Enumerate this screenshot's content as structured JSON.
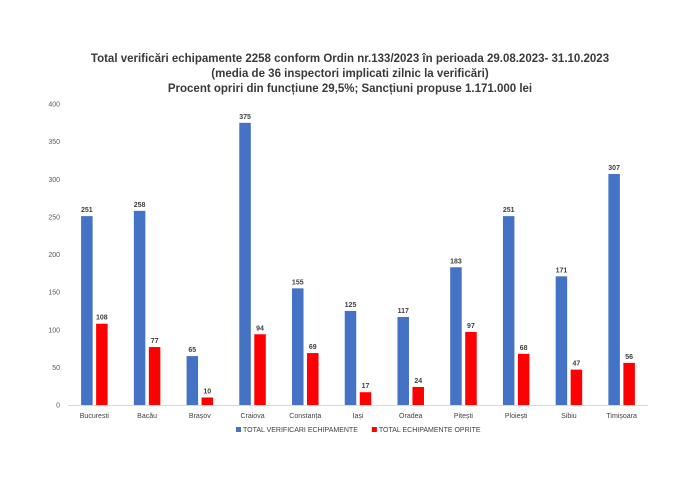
{
  "chart_data": {
    "type": "bar",
    "title": "Total verificări echipamente 2258 conform Ordin nr.133/2023 în perioada 29.08.2023- 31.10.2023",
    "subtitle": "(media de 36 inspectori implicati zilnic la verificări)",
    "subtitle2": "Procent opriri din funcțiune 29,5%; Sancțiuni propuse 1.171.000 lei",
    "categories": [
      "Bucuresti",
      "Bacău",
      "Brașov",
      "Craiova",
      "Constanța",
      "Iași",
      "Oradea",
      "Pitești",
      "Ploiești",
      "Sibiu",
      "Timișoara"
    ],
    "series": [
      {
        "name": "TOTAL VERIFICARI ECHIPAMENTE",
        "color": "#4472C4",
        "values": [
          251,
          258,
          65,
          375,
          155,
          125,
          117,
          183,
          251,
          171,
          307
        ]
      },
      {
        "name": "TOTAL ECHIPAMENTE OPRITE",
        "color": "#FF0000",
        "values": [
          108,
          77,
          10,
          94,
          69,
          17,
          24,
          97,
          68,
          47,
          56
        ]
      }
    ],
    "ylim": [
      0,
      400
    ],
    "yticks": [
      0,
      50,
      100,
      150,
      200,
      250,
      300,
      350,
      400
    ],
    "grid": false,
    "legend": "bottom",
    "data_labels": true
  }
}
